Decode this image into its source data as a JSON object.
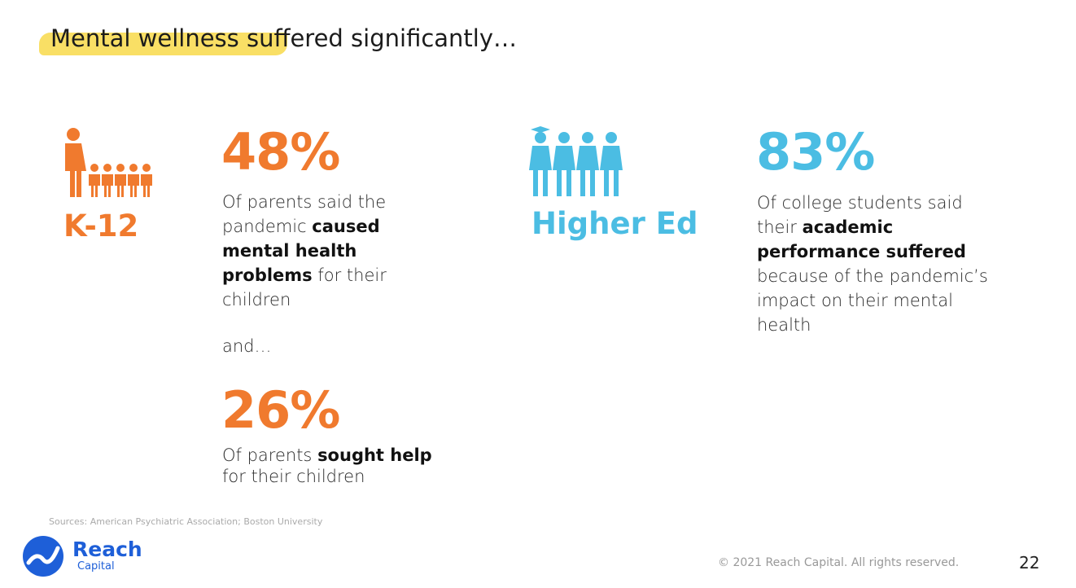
{
  "header": {
    "title": "Mental wellness suffered significantly…"
  },
  "k12": {
    "label": "K-12",
    "stats": [
      {
        "figure": "48%",
        "text": [
          {
            "text": "Of parents said the pandemic "
          },
          {
            "text": "caused mental health problems",
            "bold": true
          },
          {
            "text": " for their children"
          }
        ]
      },
      {
        "figure": "26%",
        "text": [
          {
            "text": "Of parents "
          },
          {
            "text": "sought help",
            "bold": true
          },
          {
            "text": " for their children"
          }
        ]
      }
    ],
    "connector": "and…"
  },
  "higher_ed": {
    "label": "Higher Ed",
    "stats": [
      {
        "figure": "83%",
        "text": [
          {
            "text": "Of college students said their "
          },
          {
            "text": "academic performance suffered",
            "bold": true
          },
          {
            "text": " because of the pandemic’s impact on their mental health"
          }
        ]
      }
    ]
  },
  "footer": {
    "sources": "Sources: American Psychiatric Association; Boston University",
    "logo": {
      "name": "Reach",
      "sub": "Capital"
    },
    "copyright": "© 2021 Reach Capital. All rights reserved.",
    "page": "22"
  }
}
